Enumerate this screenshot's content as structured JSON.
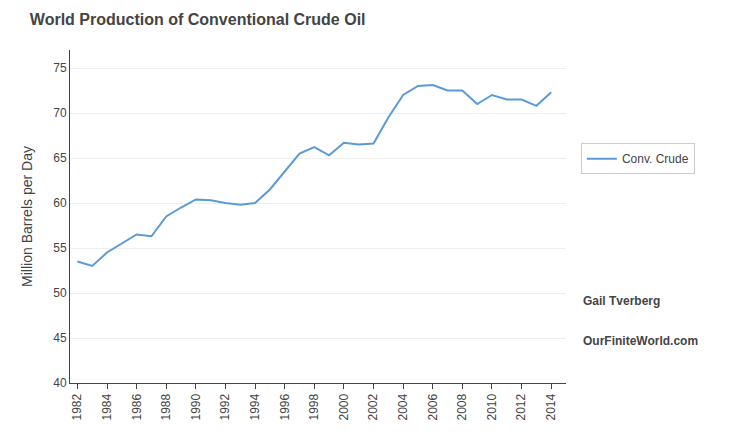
{
  "chart_data": {
    "type": "line",
    "title": "World Production of Conventional Crude Oil",
    "ylabel": "Million Barrels per Day",
    "x": [
      1982,
      1983,
      1984,
      1985,
      1986,
      1987,
      1988,
      1989,
      1990,
      1991,
      1992,
      1993,
      1994,
      1995,
      1996,
      1997,
      1998,
      1999,
      2000,
      2001,
      2002,
      2003,
      2004,
      2005,
      2006,
      2007,
      2008,
      2009,
      2010,
      2011,
      2012,
      2013,
      2014
    ],
    "series": [
      {
        "name": "Conv. Crude",
        "color": "#5b9bd5",
        "values": [
          53.5,
          53.0,
          54.5,
          55.5,
          56.5,
          56.3,
          58.5,
          59.5,
          60.4,
          60.3,
          60.0,
          59.8,
          60.0,
          61.5,
          63.5,
          65.5,
          66.2,
          65.3,
          66.7,
          66.5,
          66.6,
          69.5,
          72.0,
          73.0,
          73.1,
          72.5,
          72.5,
          71.0,
          72.0,
          71.5,
          71.5,
          70.8,
          72.3
        ]
      }
    ],
    "xlim": [
      1981.5,
      2015.0
    ],
    "xticks": [
      1982,
      1984,
      1986,
      1988,
      1990,
      1992,
      1994,
      1996,
      1998,
      2000,
      2002,
      2004,
      2006,
      2008,
      2010,
      2012,
      2014
    ],
    "ylim": [
      40,
      77
    ],
    "yticks": [
      40,
      45,
      50,
      55,
      60,
      65,
      70,
      75
    ],
    "grid": "y",
    "legend": "right",
    "annotations": [
      "Gail Tverberg",
      "OurFiniteWorld.com"
    ]
  }
}
